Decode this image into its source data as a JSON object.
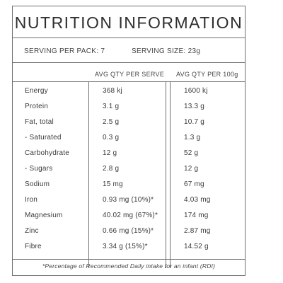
{
  "panel": {
    "title": "NUTRITION INFORMATION",
    "serving_per_pack": "SERVING PER PACK: 7",
    "serving_size": "SERVING SIZE: 23g",
    "column_serve": "AVG QTY PER SERVE",
    "column_100g": "AVG QTY PER 100g",
    "rows": [
      {
        "name": "Energy",
        "per_serve": "368 kj",
        "per_100g": "1600 kj"
      },
      {
        "name": "Protein",
        "per_serve": "3.1 g",
        "per_100g": "13.3 g"
      },
      {
        "name": "Fat, total",
        "per_serve": "2.5 g",
        "per_100g": "10.7 g"
      },
      {
        "name": "- Saturated",
        "per_serve": "0.3 g",
        "per_100g": "1.3 g"
      },
      {
        "name": "Carbohydrate",
        "per_serve": "12 g",
        "per_100g": "52 g"
      },
      {
        "name": "- Sugars",
        "per_serve": "2.8 g",
        "per_100g": "12 g"
      },
      {
        "name": "Sodium",
        "per_serve": "15 mg",
        "per_100g": "67 mg"
      },
      {
        "name": "Iron",
        "per_serve": "0.93 mg (10%)*",
        "per_100g": "4.03 mg"
      },
      {
        "name": "Magnesium",
        "per_serve": "40.02 mg (67%)*",
        "per_100g": "174 mg"
      },
      {
        "name": "Zinc",
        "per_serve": "0.66 mg (15%)*",
        "per_100g": "2.87 mg"
      },
      {
        "name": "Fibre",
        "per_serve": "3.34 g (15%)*",
        "per_100g": "14.52 g"
      }
    ],
    "footnote": "*Percentage of Recommended Daily intake for an infant (RDI)"
  }
}
